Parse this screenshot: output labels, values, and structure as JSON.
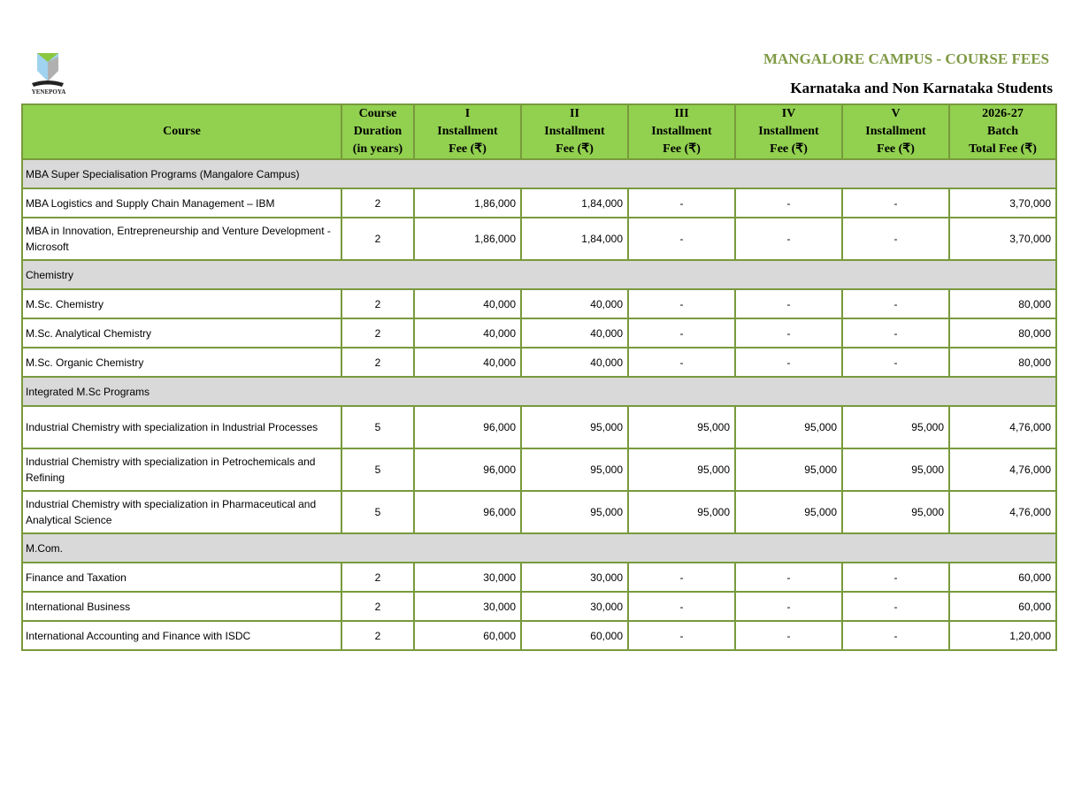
{
  "header": {
    "logo_text": "YENEPOYA",
    "title": "MANGALORE CAMPUS - COURSE FEES",
    "subtitle": "Karnataka and Non Karnataka Students"
  },
  "columns": [
    "Course",
    "Course Duration (in years)",
    "I Installment Fee (₹)",
    "II Installment Fee (₹)",
    "III Installment Fee (₹)",
    "IV Installment Fee (₹)",
    "V Installment Fee (₹)",
    "2026-27 Batch Total Fee (₹)"
  ],
  "sections": [
    {
      "title": "MBA Super Specialisation Programs (Mangalore Campus)",
      "rows": [
        [
          "MBA Logistics and Supply Chain Management – IBM",
          "2",
          "1,86,000",
          "1,84,000",
          "-",
          "-",
          "-",
          "3,70,000"
        ],
        [
          "MBA in Innovation, Entrepreneurship and Venture Development - Microsoft",
          "2",
          "1,86,000",
          "1,84,000",
          "-",
          "-",
          "-",
          "3,70,000"
        ]
      ]
    },
    {
      "title": "Chemistry",
      "rows": [
        [
          "M.Sc. Chemistry",
          "2",
          "40,000",
          "40,000",
          "-",
          "-",
          "-",
          "80,000"
        ],
        [
          "M.Sc. Analytical Chemistry",
          "2",
          "40,000",
          "40,000",
          "-",
          "-",
          "-",
          "80,000"
        ],
        [
          "M.Sc. Organic Chemistry",
          "2",
          "40,000",
          "40,000",
          "-",
          "-",
          "-",
          "80,000"
        ]
      ]
    },
    {
      "title": "Integrated M.Sc Programs",
      "rows": [
        [
          "Industrial Chemistry with specialization in Industrial Processes",
          "5",
          "96,000",
          "95,000",
          "95,000",
          "95,000",
          "95,000",
          "4,76,000"
        ],
        [
          "Industrial Chemistry with specialization in Petrochemicals and Refining",
          "5",
          "96,000",
          "95,000",
          "95,000",
          "95,000",
          "95,000",
          "4,76,000"
        ],
        [
          "Industrial Chemistry with specialization  in Pharmaceutical and Analytical Science",
          "5",
          "96,000",
          "95,000",
          "95,000",
          "95,000",
          "95,000",
          "4,76,000"
        ]
      ]
    },
    {
      "title": "M.Com.",
      "rows": [
        [
          "Finance and Taxation",
          "2",
          "30,000",
          "30,000",
          "-",
          "-",
          "-",
          "60,000"
        ],
        [
          "International Business",
          "2",
          "30,000",
          "30,000",
          "-",
          "-",
          "-",
          "60,000"
        ],
        [
          "International Accounting and Finance with ISDC",
          "2",
          "60,000",
          "60,000",
          "-",
          "-",
          "-",
          "1,20,000"
        ]
      ]
    }
  ]
}
